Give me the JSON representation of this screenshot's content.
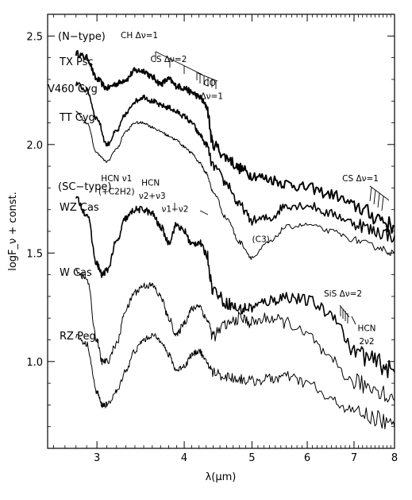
{
  "chart_data": {
    "type": "line",
    "xlabel": "λ(μm)",
    "ylabel": "logF_ν + const.",
    "x_scale": "log",
    "xlim": [
      2.55,
      8.0
    ],
    "ylim": [
      0.6,
      2.6
    ],
    "x_ticks": [
      3,
      4,
      5,
      6,
      7,
      8
    ],
    "y_ticks": [
      1.0,
      1.5,
      2.0,
      2.5
    ],
    "y_tick_labels": [
      "1.0",
      "1.5",
      "2.0",
      "2.5"
    ],
    "grid": false,
    "group_labels": [
      "(N−type)",
      "(SC−type)"
    ],
    "series": [
      {
        "name": "TX Psc",
        "x": [
          2.8,
          2.9,
          3.0,
          3.1,
          3.2,
          3.3,
          3.4,
          3.5,
          3.6,
          3.7,
          3.8,
          3.9,
          4.0,
          4.1,
          4.2,
          4.3,
          4.4,
          4.6,
          4.8,
          5.0,
          5.3,
          5.6,
          6.0,
          6.5,
          7.0,
          7.5,
          8.0
        ],
        "y": [
          2.42,
          2.4,
          2.3,
          2.26,
          2.28,
          2.3,
          2.34,
          2.34,
          2.31,
          2.28,
          2.3,
          2.27,
          2.26,
          2.24,
          2.22,
          2.18,
          2.0,
          1.94,
          1.89,
          1.86,
          1.84,
          1.82,
          1.8,
          1.77,
          1.72,
          1.67,
          1.62
        ]
      },
      {
        "name": "V460 Cyg",
        "x": [
          2.8,
          2.9,
          3.0,
          3.1,
          3.2,
          3.3,
          3.4,
          3.5,
          3.6,
          3.7,
          3.8,
          3.9,
          4.0,
          4.1,
          4.2,
          4.3,
          4.4,
          4.6,
          4.8,
          5.0,
          5.3,
          5.6,
          6.0,
          6.5,
          7.0,
          7.5,
          8.0
        ],
        "y": [
          2.28,
          2.25,
          2.12,
          2.0,
          2.06,
          2.14,
          2.2,
          2.22,
          2.2,
          2.18,
          2.17,
          2.15,
          2.13,
          2.1,
          2.05,
          2.0,
          1.9,
          1.82,
          1.72,
          1.65,
          1.66,
          1.72,
          1.72,
          1.68,
          1.64,
          1.6,
          1.58
        ]
      },
      {
        "name": "TT Cyg",
        "x": [
          2.8,
          2.9,
          3.0,
          3.1,
          3.2,
          3.3,
          3.4,
          3.5,
          3.6,
          3.7,
          3.8,
          3.9,
          4.0,
          4.1,
          4.2,
          4.3,
          4.4,
          4.6,
          4.8,
          5.0,
          5.3,
          5.6,
          6.0,
          6.5,
          7.0,
          7.5,
          8.0
        ],
        "y": [
          2.15,
          2.1,
          1.96,
          1.92,
          1.98,
          2.06,
          2.1,
          2.1,
          2.08,
          2.06,
          2.04,
          2.02,
          1.99,
          1.96,
          1.92,
          1.87,
          1.78,
          1.66,
          1.55,
          1.48,
          1.55,
          1.62,
          1.63,
          1.6,
          1.56,
          1.53,
          1.5
        ]
      },
      {
        "name": "WZ Cas",
        "x": [
          2.8,
          2.9,
          3.0,
          3.05,
          3.1,
          3.2,
          3.3,
          3.4,
          3.5,
          3.6,
          3.7,
          3.8,
          3.9,
          4.0,
          4.1,
          4.2,
          4.3,
          4.4,
          4.6,
          4.8,
          5.0,
          5.3,
          5.6,
          6.0,
          6.5,
          7.0,
          7.5,
          8.0
        ],
        "y": [
          1.75,
          1.68,
          1.45,
          1.4,
          1.42,
          1.55,
          1.66,
          1.7,
          1.7,
          1.68,
          1.62,
          1.55,
          1.63,
          1.6,
          1.54,
          1.55,
          1.5,
          1.33,
          1.27,
          1.24,
          1.25,
          1.28,
          1.3,
          1.28,
          1.22,
          1.05,
          1.0,
          0.95
        ]
      },
      {
        "name": "W Cas",
        "x": [
          2.8,
          2.9,
          3.0,
          3.05,
          3.1,
          3.2,
          3.3,
          3.4,
          3.5,
          3.6,
          3.7,
          3.8,
          3.9,
          4.0,
          4.1,
          4.2,
          4.3,
          4.4,
          4.6,
          4.8,
          5.0,
          5.3,
          5.6,
          6.0,
          6.5,
          7.0,
          7.5,
          8.0
        ],
        "y": [
          1.42,
          1.38,
          1.1,
          1.0,
          1.0,
          1.08,
          1.24,
          1.32,
          1.35,
          1.35,
          1.3,
          1.2,
          1.12,
          1.18,
          1.24,
          1.26,
          1.2,
          1.12,
          1.17,
          1.2,
          1.18,
          1.2,
          1.18,
          1.12,
          1.0,
          0.9,
          0.88,
          0.82
        ]
      },
      {
        "name": "RZ Peg",
        "x": [
          2.8,
          2.9,
          3.0,
          3.05,
          3.1,
          3.2,
          3.3,
          3.4,
          3.5,
          3.6,
          3.7,
          3.8,
          3.9,
          4.0,
          4.1,
          4.2,
          4.3,
          4.4,
          4.6,
          4.8,
          5.0,
          5.3,
          5.6,
          6.0,
          6.5,
          7.0,
          7.5,
          8.0
        ],
        "y": [
          1.12,
          1.08,
          0.86,
          0.8,
          0.8,
          0.86,
          0.96,
          1.05,
          1.1,
          1.12,
          1.1,
          1.03,
          0.96,
          0.98,
          1.03,
          1.05,
          1.0,
          0.95,
          0.93,
          0.92,
          0.91,
          0.92,
          0.93,
          0.9,
          0.82,
          0.77,
          0.74,
          0.7
        ]
      }
    ],
    "annotations": [
      {
        "text": "CH Δν=1",
        "x": 3.45,
        "y": 2.49
      },
      {
        "text": "CS Δν=2",
        "x": 3.8,
        "y": 2.38
      },
      {
        "text": "CO",
        "x": 4.35,
        "y": 2.27
      },
      {
        "text": "Δν=1",
        "x": 4.38,
        "y": 2.21
      },
      {
        "text": "HCN ν1",
        "x": 3.2,
        "y": 1.83
      },
      {
        "text": "(+C2H2)",
        "x": 3.2,
        "y": 1.77
      },
      {
        "text": "HCN",
        "x": 3.58,
        "y": 1.81
      },
      {
        "text": "ν2+ν3",
        "x": 3.6,
        "y": 1.75
      },
      {
        "text": "ν1−ν2",
        "x": 3.88,
        "y": 1.69
      },
      {
        "text": "(C3)",
        "x": 5.15,
        "y": 1.55
      },
      {
        "text": "CS Δν=1",
        "x": 7.15,
        "y": 1.83
      },
      {
        "text": "SiS Δν=2",
        "x": 6.75,
        "y": 1.3
      },
      {
        "text": "HCN",
        "x": 7.3,
        "y": 1.14
      },
      {
        "text": "2ν2",
        "x": 7.3,
        "y": 1.08
      }
    ]
  }
}
